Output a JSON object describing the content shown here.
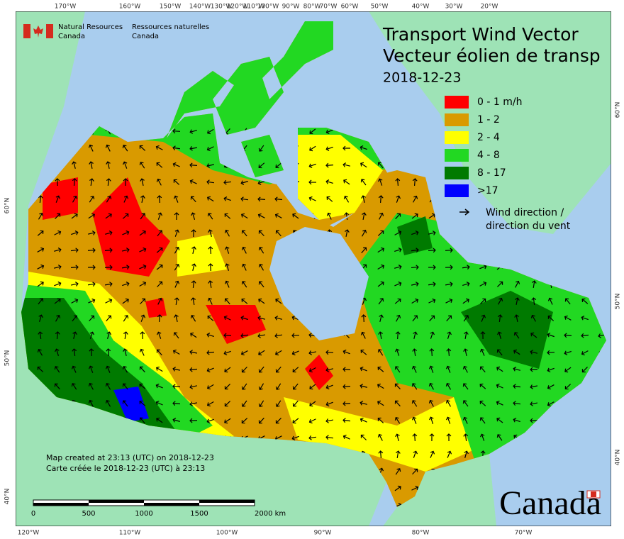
{
  "agency": {
    "en_line1": "Natural Resources",
    "en_line2": "Canada",
    "fr_line1": "Ressources naturelles",
    "fr_line2": "Canada"
  },
  "title": {
    "en": "Transport Wind Vector",
    "fr": "Vecteur éolien de transp",
    "date": "2018-12-23"
  },
  "legend": [
    {
      "label": "0 - 1 m/h",
      "color": "#ff0000"
    },
    {
      "label": "1 - 2",
      "color": "#d99a00"
    },
    {
      "label": "2 - 4",
      "color": "#ffff00"
    },
    {
      "label": "4 - 8",
      "color": "#22d822"
    },
    {
      "label": "8 - 17",
      "color": "#007a00"
    },
    {
      "label": ">17",
      "color": "#0000ff"
    }
  ],
  "wind_legend": {
    "line1": "Wind direction /",
    "line2": "direction du vent"
  },
  "credits": {
    "en": "Map created at 23:13 (UTC) on 2018-12-23",
    "fr": "Carte créée le 2018-12-23 (UTC) à 23:13"
  },
  "top_longitudes": [
    "170°W",
    "160°W",
    "150°W",
    "140°W",
    "130°W",
    "120°W",
    "110°W",
    "100°W",
    "90°W",
    "80°W",
    "70°W",
    "60°W",
    "50°W",
    "40°W",
    "30°W",
    "20°W"
  ],
  "bottom_longitudes": [
    "120°W",
    "110°W",
    "100°W",
    "90°W",
    "80°W",
    "70°W"
  ],
  "left_latitudes": [
    "60°N",
    "50°N",
    "40°N"
  ],
  "right_latitudes": [
    "60°N",
    "50°N",
    "40°N"
  ],
  "scale_bar": [
    "0",
    "500",
    "1000",
    "1500",
    "2000 km"
  ],
  "wordmark": "Canada"
}
